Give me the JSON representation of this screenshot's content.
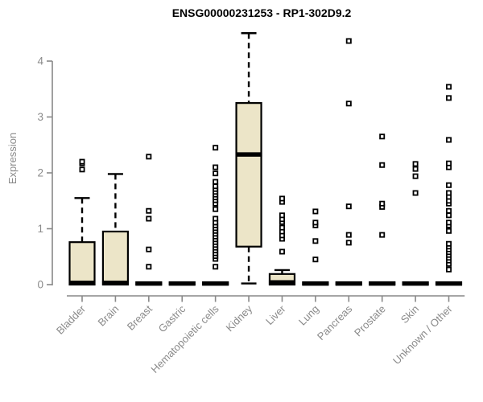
{
  "chart_data": {
    "type": "boxplot",
    "title": "ENSG00000231253 - RP1-302D9.2",
    "ylabel": "Expression",
    "xlabel": "",
    "ylim": [
      0,
      4.6
    ],
    "yticks": [
      0,
      1,
      2,
      3,
      4
    ],
    "ytick_labels": [
      "0",
      "1",
      "2",
      "3",
      "4"
    ],
    "grid": false,
    "legend": "none",
    "colors": {
      "box_fill": "#ece5c8",
      "box_stroke": "#000000",
      "axis": "#898989",
      "tick_label": "#8a8a8a",
      "title": "#000000"
    },
    "categories": [
      {
        "label": "Bladder",
        "q1": 0,
        "median": 0.03,
        "q3": 0.76,
        "whisker_low": 0,
        "whisker_high": 1.55,
        "outliers": [
          2.06,
          2.17,
          2.2
        ]
      },
      {
        "label": "Brain",
        "q1": 0,
        "median": 0.03,
        "q3": 0.95,
        "whisker_low": 0,
        "whisker_high": 1.98,
        "outliers": []
      },
      {
        "label": "Breast",
        "q1": 0,
        "median": 0.02,
        "q3": 0.04,
        "whisker_low": 0,
        "whisker_high": 0.04,
        "outliers": [
          0.32,
          0.63,
          1.18,
          1.32,
          2.29
        ]
      },
      {
        "label": "Gastric",
        "q1": 0,
        "median": 0.02,
        "q3": 0.04,
        "whisker_low": 0,
        "whisker_high": 0.04,
        "outliers": []
      },
      {
        "label": "Hematopoietic cells",
        "q1": 0,
        "median": 0.02,
        "q3": 0.04,
        "whisker_low": 0,
        "whisker_high": 0.04,
        "outliers": [
          0.32,
          0.46,
          0.51,
          0.56,
          0.61,
          0.66,
          0.71,
          0.76,
          0.81,
          0.86,
          0.91,
          0.96,
          1.01,
          1.06,
          1.11,
          1.18,
          1.35,
          1.45,
          1.51,
          1.56,
          1.61,
          1.66,
          1.71,
          1.76,
          1.84,
          1.99,
          2.1,
          2.45
        ]
      },
      {
        "label": "Kidney",
        "q1": 0.68,
        "median": 2.33,
        "q3": 3.25,
        "whisker_low": 0.02,
        "whisker_high": 4.5,
        "outliers": []
      },
      {
        "label": "Liver",
        "q1": 0,
        "median": 0.04,
        "q3": 0.19,
        "whisker_low": 0,
        "whisker_high": 0.26,
        "outliers": [
          0.59,
          0.82,
          0.88,
          0.95,
          1.02,
          1.12,
          1.17,
          1.24,
          1.48,
          1.54
        ]
      },
      {
        "label": "Lung",
        "q1": 0,
        "median": 0.02,
        "q3": 0.04,
        "whisker_low": 0,
        "whisker_high": 0.04,
        "outliers": [
          0.45,
          0.78,
          1.06,
          1.11,
          1.31
        ]
      },
      {
        "label": "Pancreas",
        "q1": 0,
        "median": 0.02,
        "q3": 0.04,
        "whisker_low": 0,
        "whisker_high": 0.04,
        "outliers": [
          0.75,
          0.89,
          1.4,
          3.24,
          4.36
        ]
      },
      {
        "label": "Prostate",
        "q1": 0,
        "median": 0.02,
        "q3": 0.04,
        "whisker_low": 0,
        "whisker_high": 0.04,
        "outliers": [
          0.89,
          1.39,
          1.45,
          2.14,
          2.65
        ]
      },
      {
        "label": "Skin",
        "q1": 0,
        "median": 0.02,
        "q3": 0.04,
        "whisker_low": 0,
        "whisker_high": 0.04,
        "outliers": [
          1.64,
          1.94,
          2.07,
          2.16
        ]
      },
      {
        "label": "Unknown / Other",
        "q1": 0,
        "median": 0.02,
        "q3": 0.04,
        "whisker_low": 0,
        "whisker_high": 0.04,
        "outliers": [
          0.27,
          0.37,
          0.43,
          0.48,
          0.53,
          0.58,
          0.63,
          0.68,
          0.73,
          0.96,
          1.06,
          1.11,
          1.24,
          1.32,
          1.45,
          1.5,
          1.57,
          1.64,
          1.78,
          2.1,
          2.17,
          2.59,
          3.34,
          3.54
        ]
      }
    ]
  }
}
